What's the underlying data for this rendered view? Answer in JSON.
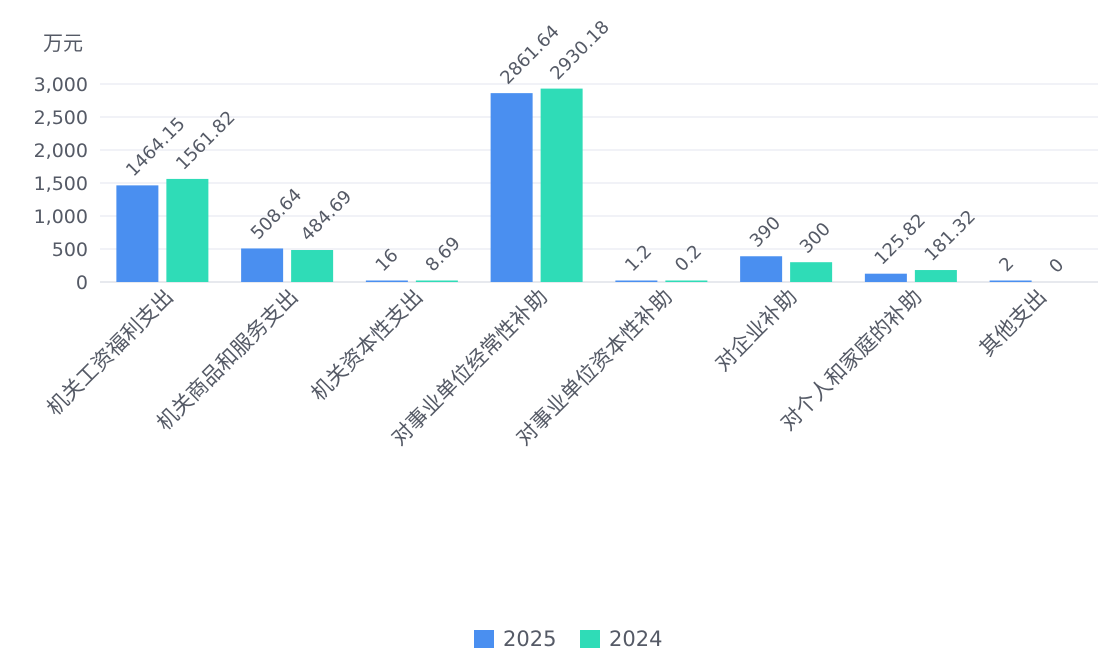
{
  "chart_data": {
    "type": "bar",
    "unit_label": "万元",
    "categories": [
      "机关工资福利支出",
      "机关商品和服务支出",
      "机关资本性支出",
      "对事业单位经常性补助",
      "对事业单位资本性补助",
      "对企业补助",
      "对个人和家庭的补助",
      "其他支出"
    ],
    "series": [
      {
        "name": "2025",
        "color": "#4a8ff0",
        "values": [
          1464.15,
          508.64,
          16,
          2861.64,
          1.2,
          390,
          125.82,
          2
        ],
        "labels": [
          "1464.15",
          "508.64",
          "16",
          "2861.64",
          "1.2",
          "390",
          "125.82",
          "2"
        ]
      },
      {
        "name": "2024",
        "color": "#2fdcb7",
        "values": [
          1561.82,
          484.69,
          8.69,
          2930.18,
          0.2,
          300,
          181.32,
          0
        ],
        "labels": [
          "1561.82",
          "484.69",
          "8.69",
          "2930.18",
          "0.2",
          "300",
          "181.32",
          "0"
        ]
      }
    ],
    "ylim": [
      0,
      3000
    ],
    "yticks": [
      {
        "value": 0,
        "label": "0"
      },
      {
        "value": 500,
        "label": "500"
      },
      {
        "value": 1000,
        "label": "1,000"
      },
      {
        "value": 1500,
        "label": "1,500"
      },
      {
        "value": 2000,
        "label": "2,000"
      },
      {
        "value": 2500,
        "label": "2,500"
      },
      {
        "value": 3000,
        "label": "3,000"
      }
    ],
    "grid": true,
    "legend_position": "bottom-center",
    "colors": {
      "text": "#555a66",
      "grid": "#e3e6ef",
      "axis": "#cfd3dc"
    }
  }
}
